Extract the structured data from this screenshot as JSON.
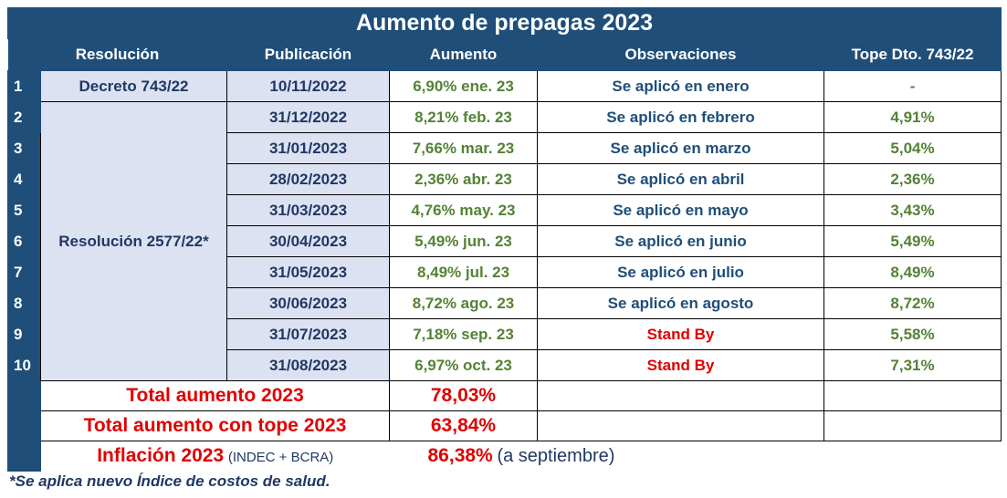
{
  "title": "Aumento de prepagas 2023",
  "columns": [
    "Resolución",
    "Publicación",
    "Aumento",
    "Observaciones",
    "Tope Dto. 743/22"
  ],
  "resolutions": [
    "Decreto 743/22",
    "Resolución 2577/22*"
  ],
  "rows": [
    [
      "1",
      "10/11/2022",
      "6,90% ene. 23",
      "Se aplicó en enero",
      "-"
    ],
    [
      "2",
      "31/12/2022",
      "8,21% feb. 23",
      "Se aplicó en febrero",
      "4,91%"
    ],
    [
      "3",
      "31/01/2023",
      "7,66% mar. 23",
      "Se aplicó en marzo",
      "5,04%"
    ],
    [
      "4",
      "28/02/2023",
      "2,36% abr. 23",
      "Se aplicó en abril",
      "2,36%"
    ],
    [
      "5",
      "31/03/2023",
      "4,76% may. 23",
      "Se aplicó en mayo",
      "3,43%"
    ],
    [
      "6",
      "30/04/2023",
      "5,49% jun. 23",
      "Se aplicó en junio",
      "5,49%"
    ],
    [
      "7",
      "31/05/2023",
      "8,49% jul. 23",
      "Se aplicó en julio",
      "8,49%"
    ],
    [
      "8",
      "30/06/2023",
      "8,72% ago. 23",
      "Se aplicó en agosto",
      "8,72%"
    ],
    [
      "9",
      "31/07/2023",
      "7,18% sep. 23",
      "Stand By",
      "5,58%"
    ],
    [
      "10",
      "31/08/2023",
      "6,97% oct. 23",
      "Stand By",
      "7,31%"
    ]
  ],
  "totals": [
    {
      "label": "Total aumento 2023",
      "value": "78,03%"
    },
    {
      "label": "Total aumento con tope 2023",
      "value": "63,84%"
    }
  ],
  "inflation": {
    "label": "Inflación 2023",
    "source": "(INDEC + BCRA)",
    "value": "86,38%",
    "note": "(a septiembre)"
  },
  "footnote": "*Se aplica nuevo Índice de costos de salud."
}
